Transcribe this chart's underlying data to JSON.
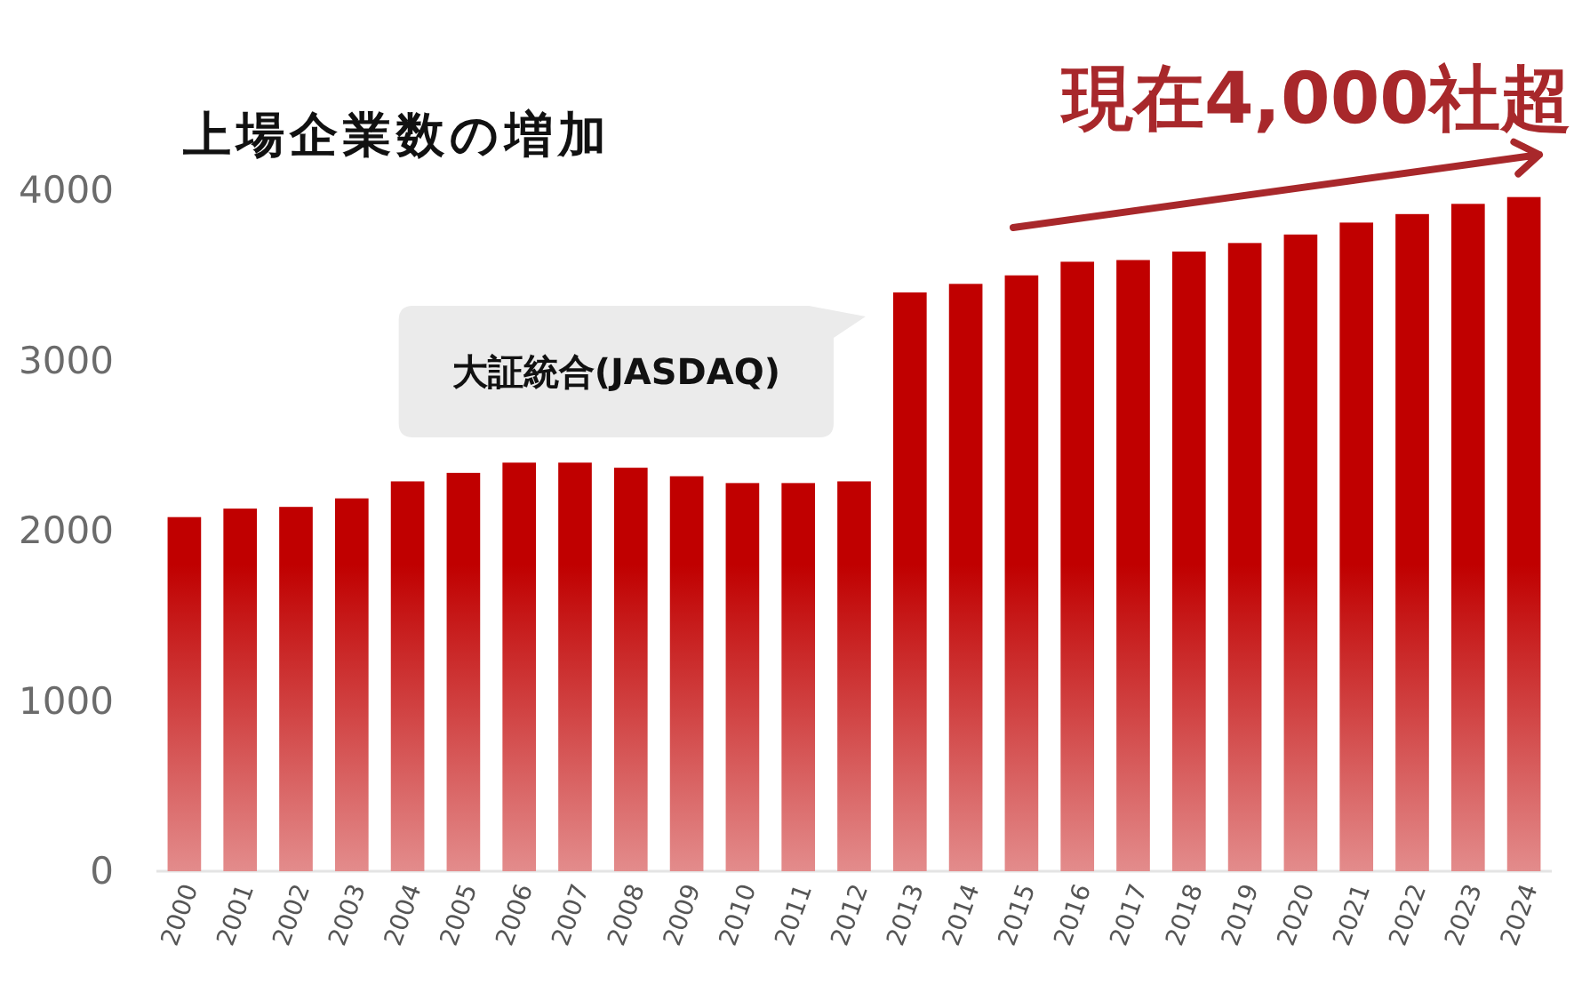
{
  "chart_data": {
    "type": "bar",
    "title": "上場企業数の増加",
    "categories": [
      "2000",
      "2001",
      "2002",
      "2003",
      "2004",
      "2005",
      "2006",
      "2007",
      "2008",
      "2009",
      "2010",
      "2011",
      "2012",
      "2013",
      "2014",
      "2015",
      "2016",
      "2017",
      "2018",
      "2019",
      "2020",
      "2021",
      "2022",
      "2023",
      "2024"
    ],
    "values": [
      2080,
      2130,
      2140,
      2190,
      2290,
      2340,
      2400,
      2400,
      2370,
      2320,
      2280,
      2280,
      2290,
      3400,
      3450,
      3500,
      3580,
      3590,
      3640,
      3690,
      3740,
      3810,
      3860,
      3920,
      3960
    ],
    "color": "#c00000",
    "ylim": [
      0,
      4000
    ],
    "yticks": [
      0,
      1000,
      2000,
      3000,
      4000
    ],
    "annotations": [
      "大証統合(JASDAQ)",
      "現在4,000社超"
    ]
  }
}
